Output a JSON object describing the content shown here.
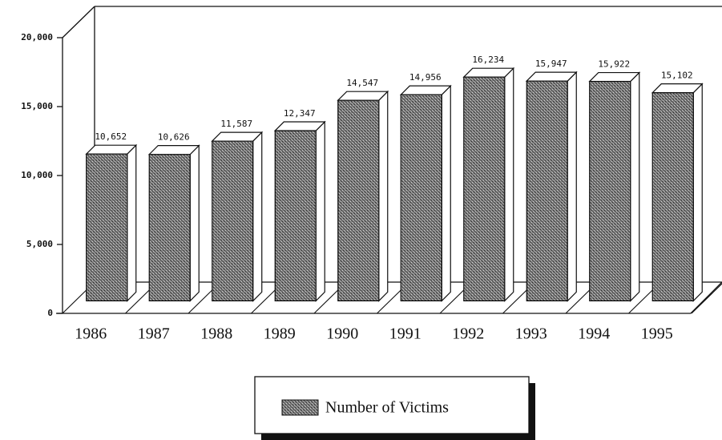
{
  "chart_data": {
    "type": "bar3d",
    "categories": [
      "1986",
      "1987",
      "1988",
      "1989",
      "1990",
      "1991",
      "1992",
      "1993",
      "1994",
      "1995"
    ],
    "series": [
      {
        "name": "Number of Victims",
        "color": "#7a7a7a",
        "values": [
          10652,
          10626,
          11587,
          12347,
          14547,
          14956,
          16234,
          15947,
          15922,
          15102
        ],
        "value_labels": [
          "10,652",
          "10,626",
          "11,587",
          "12,347",
          "14,547",
          "14,956",
          "16,234",
          "15,947",
          "15,922",
          "15,102"
        ]
      }
    ],
    "ylim": [
      0,
      20000
    ],
    "yticks": [
      0,
      {
        "value": 5000,
        "label": "5,000"
      },
      {
        "value": 10000,
        "label": "10,000"
      },
      {
        "value": 15000,
        "label": "15,000"
      },
      {
        "value": 20000,
        "label": "20,000"
      }
    ]
  }
}
